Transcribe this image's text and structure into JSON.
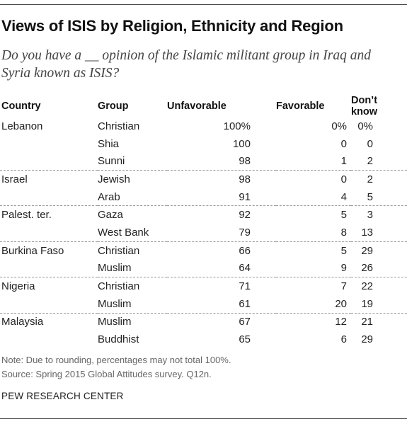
{
  "title": "Views of ISIS by Religion, Ethnicity and Region",
  "subtitle": "Do you have a __ opinion of the Islamic militant group in Iraq and Syria known as ISIS?",
  "note": "Note: Due to rounding, percentages may not total 100%.",
  "source": "Source: Spring 2015 Global Attitudes survey. Q12n.",
  "credit": "PEW RESEARCH CENTER",
  "chart_data": {
    "type": "table",
    "title": "Views of ISIS by Religion, Ethnicity and Region",
    "columns": [
      "Country",
      "Group",
      "Unfavorable",
      "Favorable",
      "Don’t know"
    ],
    "rows": [
      {
        "country": "Lebanon",
        "group": "Christian",
        "unfavorable": "100%",
        "favorable": "0%",
        "dont_know": "0%"
      },
      {
        "country": "",
        "group": "Shia",
        "unfavorable": "100",
        "favorable": "0",
        "dont_know": "0"
      },
      {
        "country": "",
        "group": "Sunni",
        "unfavorable": "98",
        "favorable": "1",
        "dont_know": "2"
      },
      {
        "country": "Israel",
        "group": "Jewish",
        "unfavorable": "98",
        "favorable": "0",
        "dont_know": "2"
      },
      {
        "country": "",
        "group": "Arab",
        "unfavorable": "91",
        "favorable": "4",
        "dont_know": "5"
      },
      {
        "country": "Palest. ter.",
        "group": "Gaza",
        "unfavorable": "92",
        "favorable": "5",
        "dont_know": "3"
      },
      {
        "country": "",
        "group": "West Bank",
        "unfavorable": "79",
        "favorable": "8",
        "dont_know": "13"
      },
      {
        "country": "Burkina Faso",
        "group": "Christian",
        "unfavorable": "66",
        "favorable": "5",
        "dont_know": "29"
      },
      {
        "country": "",
        "group": "Muslim",
        "unfavorable": "64",
        "favorable": "9",
        "dont_know": "26"
      },
      {
        "country": "Nigeria",
        "group": "Christian",
        "unfavorable": "71",
        "favorable": "7",
        "dont_know": "22"
      },
      {
        "country": "",
        "group": "Muslim",
        "unfavorable": "61",
        "favorable": "20",
        "dont_know": "19"
      },
      {
        "country": "Malaysia",
        "group": "Muslim",
        "unfavorable": "67",
        "favorable": "12",
        "dont_know": "21"
      },
      {
        "country": "",
        "group": "Buddhist",
        "unfavorable": "65",
        "favorable": "6",
        "dont_know": "29"
      }
    ]
  }
}
